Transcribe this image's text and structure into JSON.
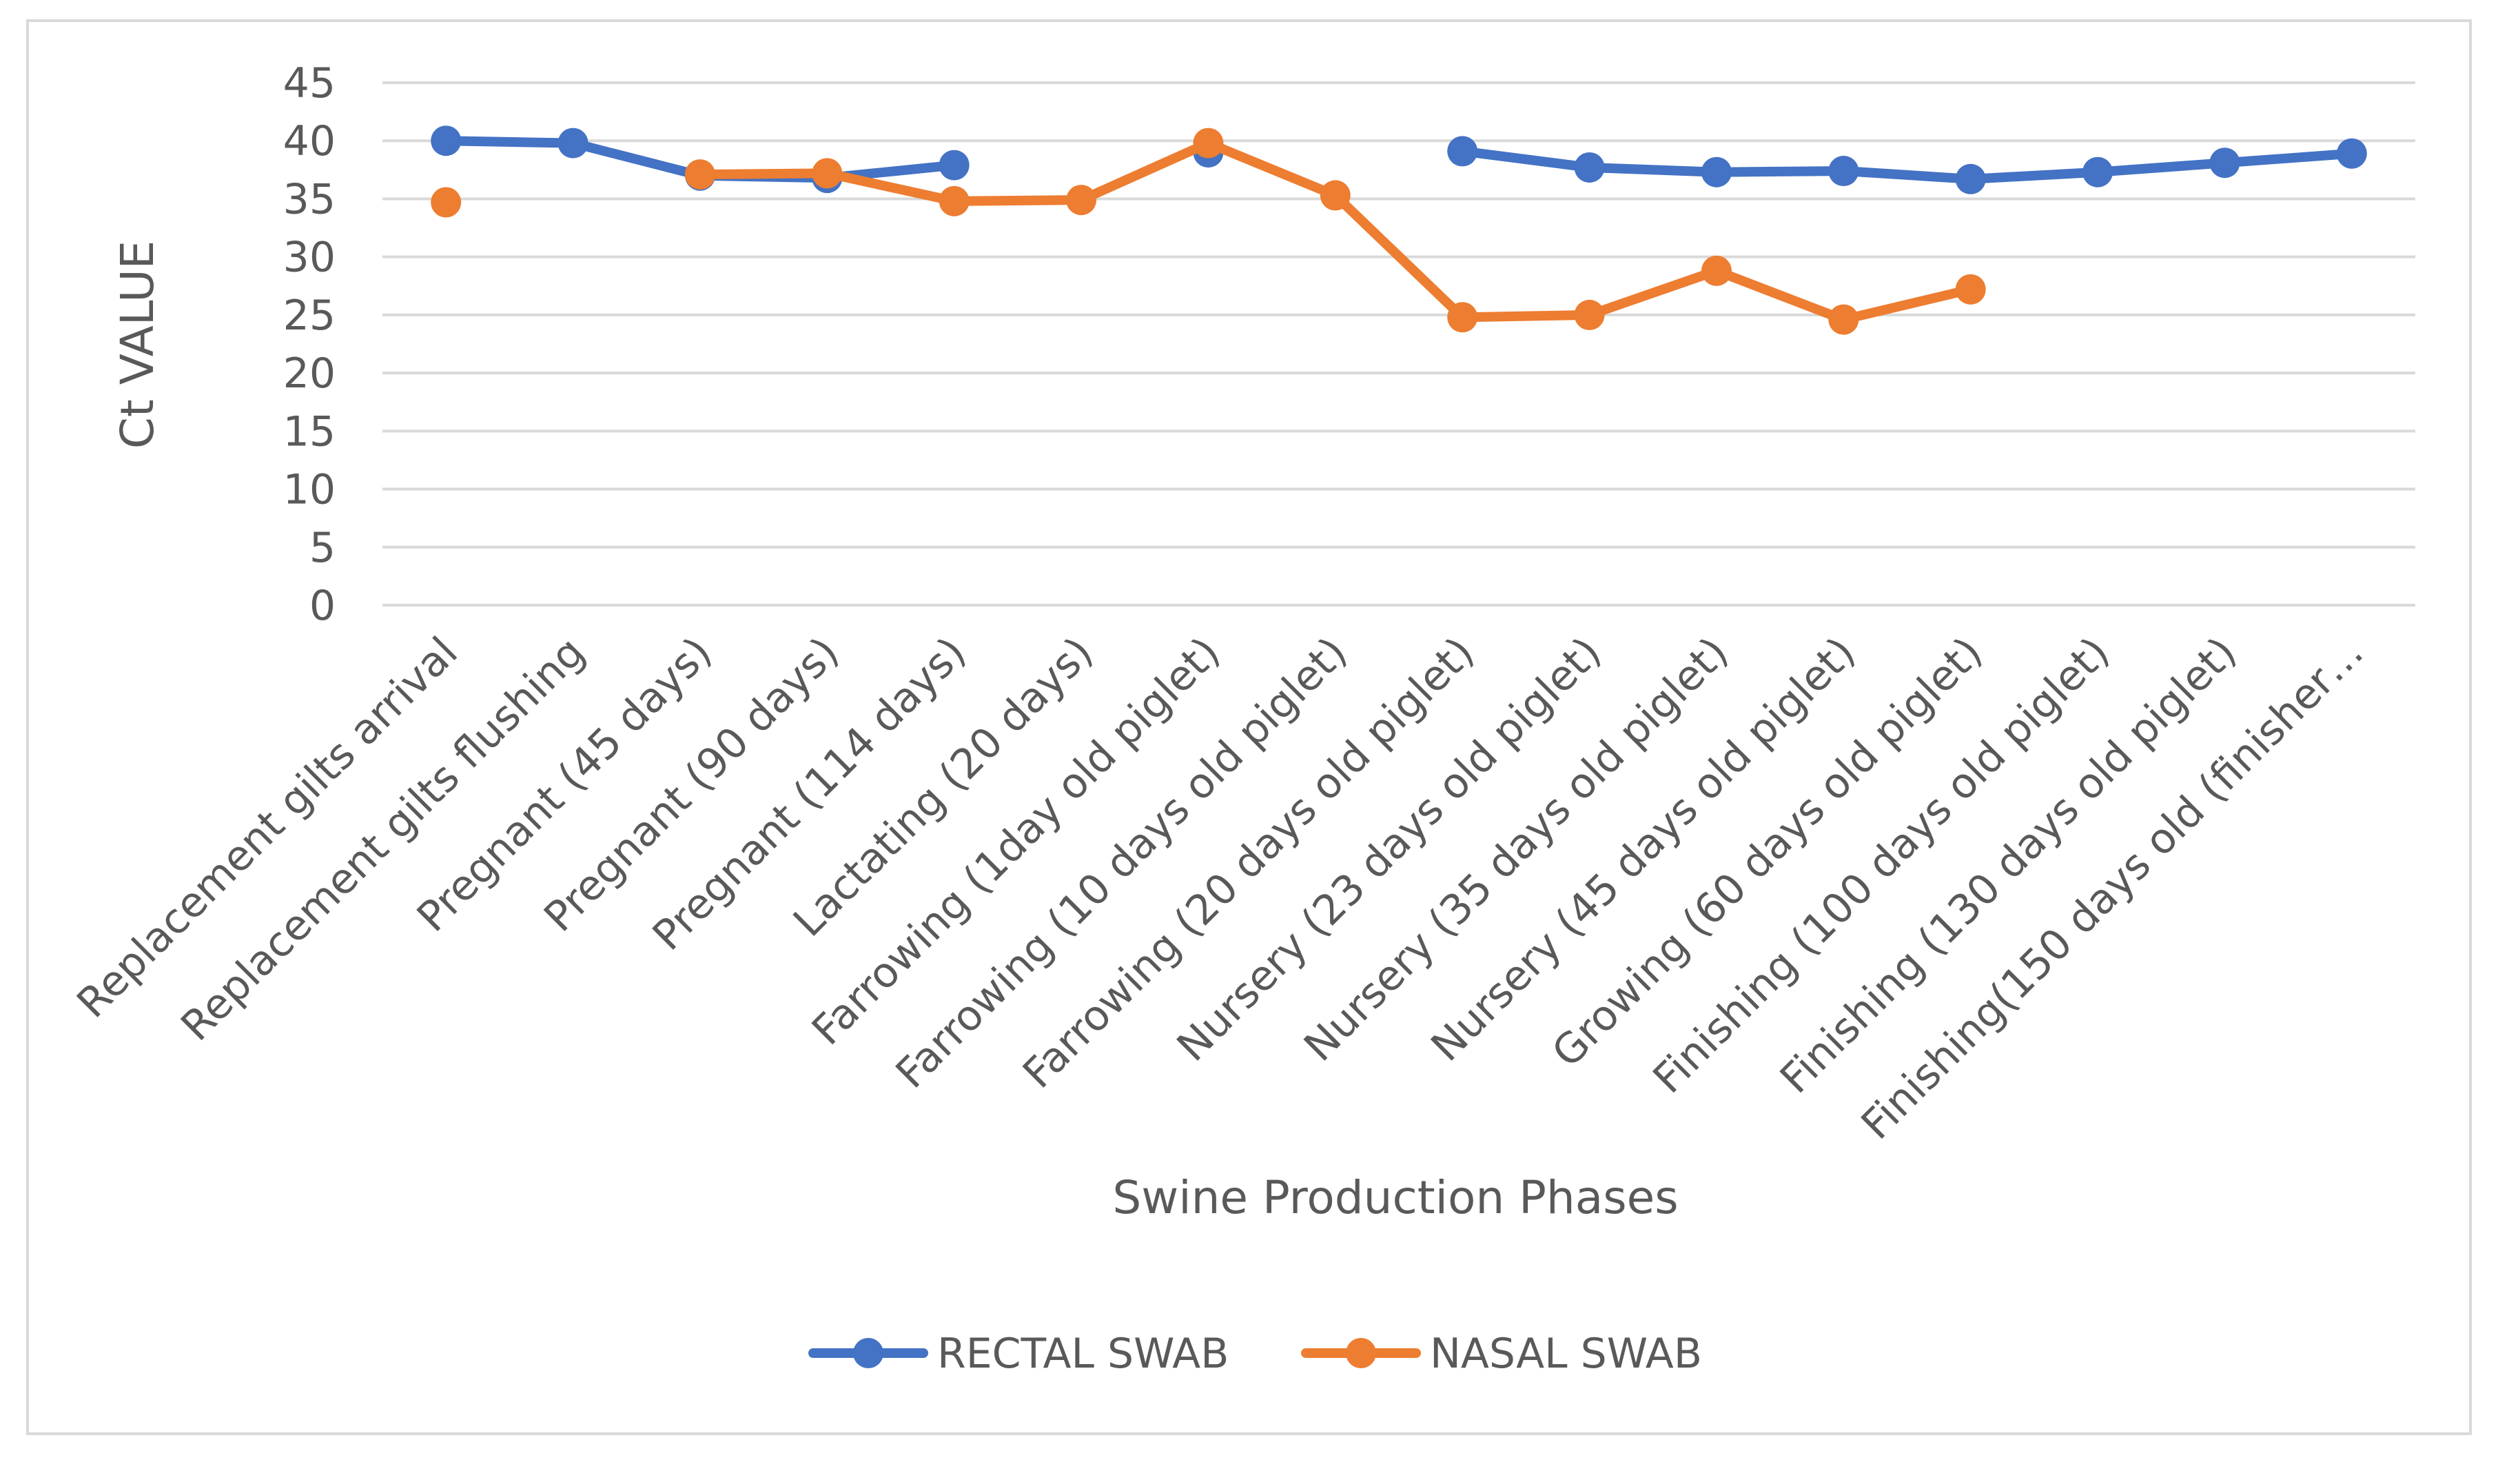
{
  "chart_data": {
    "type": "line",
    "title": "",
    "xlabel": "Swine Production Phases",
    "ylabel": "Ct VALUE",
    "ylim": [
      0,
      45
    ],
    "yticks": [
      0,
      5,
      10,
      15,
      20,
      25,
      30,
      35,
      40,
      45
    ],
    "grid": true,
    "legend_position": "bottom",
    "categories": [
      "Replacement gilts arrival",
      "Replacement gilts flushing",
      "Pregnant (45 days)",
      "Pregnant (90 days)",
      "Pregnant (114 days)",
      "Lactating (20 days)",
      "Farrowing (1day old piglet)",
      "Farrowing (10 days old piglet)",
      "Farrowing (20 days old piglet)",
      "Nursery (23 days old piglet)",
      "Nursery (35 days old piglet)",
      "Nursery (45 days old piglet)",
      "Growing (60 days old piglet)",
      "Finishing (100 days old piglet)",
      "Finishing (130 days old piglet)",
      "Finishing(150 days old (finisher…"
    ],
    "series": [
      {
        "name": "RECTAL SWAB",
        "color": "#4472C4",
        "values": [
          40,
          39.8,
          37,
          36.8,
          37.9,
          null,
          39,
          null,
          39.1,
          37.7,
          37.3,
          37.4,
          36.7,
          37.3,
          38.1,
          38.9
        ]
      },
      {
        "name": "NASAL SWAB",
        "color": "#ED7D31",
        "values": [
          34.7,
          null,
          37.1,
          37.2,
          34.8,
          34.9,
          39.8,
          35.3,
          24.8,
          25,
          28.8,
          24.6,
          27.2,
          null,
          null,
          null
        ]
      }
    ]
  }
}
